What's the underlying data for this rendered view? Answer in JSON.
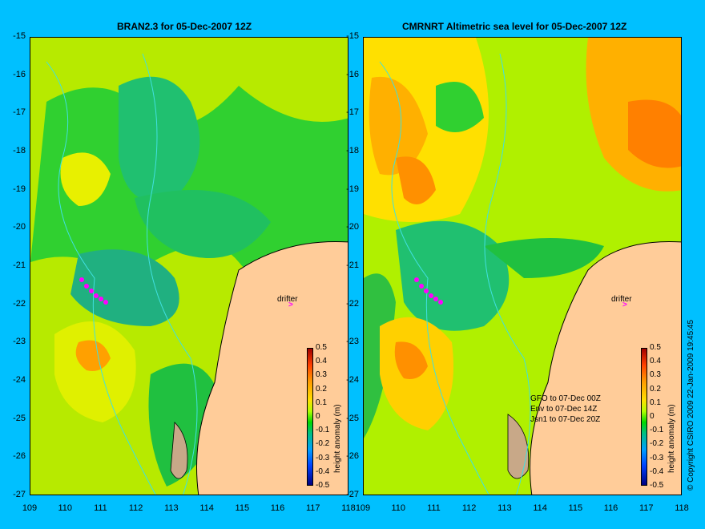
{
  "panels": {
    "left": {
      "title": "BRAN2.3 for 05-Dec-2007 12Z",
      "drifter_label": "drifter",
      "drifter_marker": ">"
    },
    "right": {
      "title": "CMRNRT Altimetric sea level  for 05-Dec-2007 12Z",
      "drifter_label": "drifter",
      "drifter_marker": ">",
      "notes": [
        "GFO to 07-Dec 00Z",
        "Env to 07-Dec 14Z",
        "Jsn1 to 07-Dec 20Z"
      ]
    }
  },
  "axes": {
    "y_ticks": [
      "-15",
      "-16",
      "-17",
      "-18",
      "-19",
      "-20",
      "-21",
      "-22",
      "-23",
      "-24",
      "-25",
      "-26",
      "-27"
    ],
    "x_ticks": [
      "109",
      "110",
      "111",
      "112",
      "113",
      "114",
      "115",
      "116",
      "117",
      "118"
    ]
  },
  "colorbar": {
    "label": "height anomaly (m)",
    "ticks": [
      "0.5",
      "0.4",
      "0.3",
      "0.2",
      "0.1",
      "0",
      "-0.1",
      "-0.2",
      "-0.3",
      "-0.4",
      "-0.5"
    ]
  },
  "copyright": "© Copyright CSIRO 2009   22-Jan-2009 19:45:45",
  "colors": {
    "background": "#00c0ff",
    "land": "#ffcc99",
    "coast": "#000000",
    "drifter": "#ff00ff"
  }
}
